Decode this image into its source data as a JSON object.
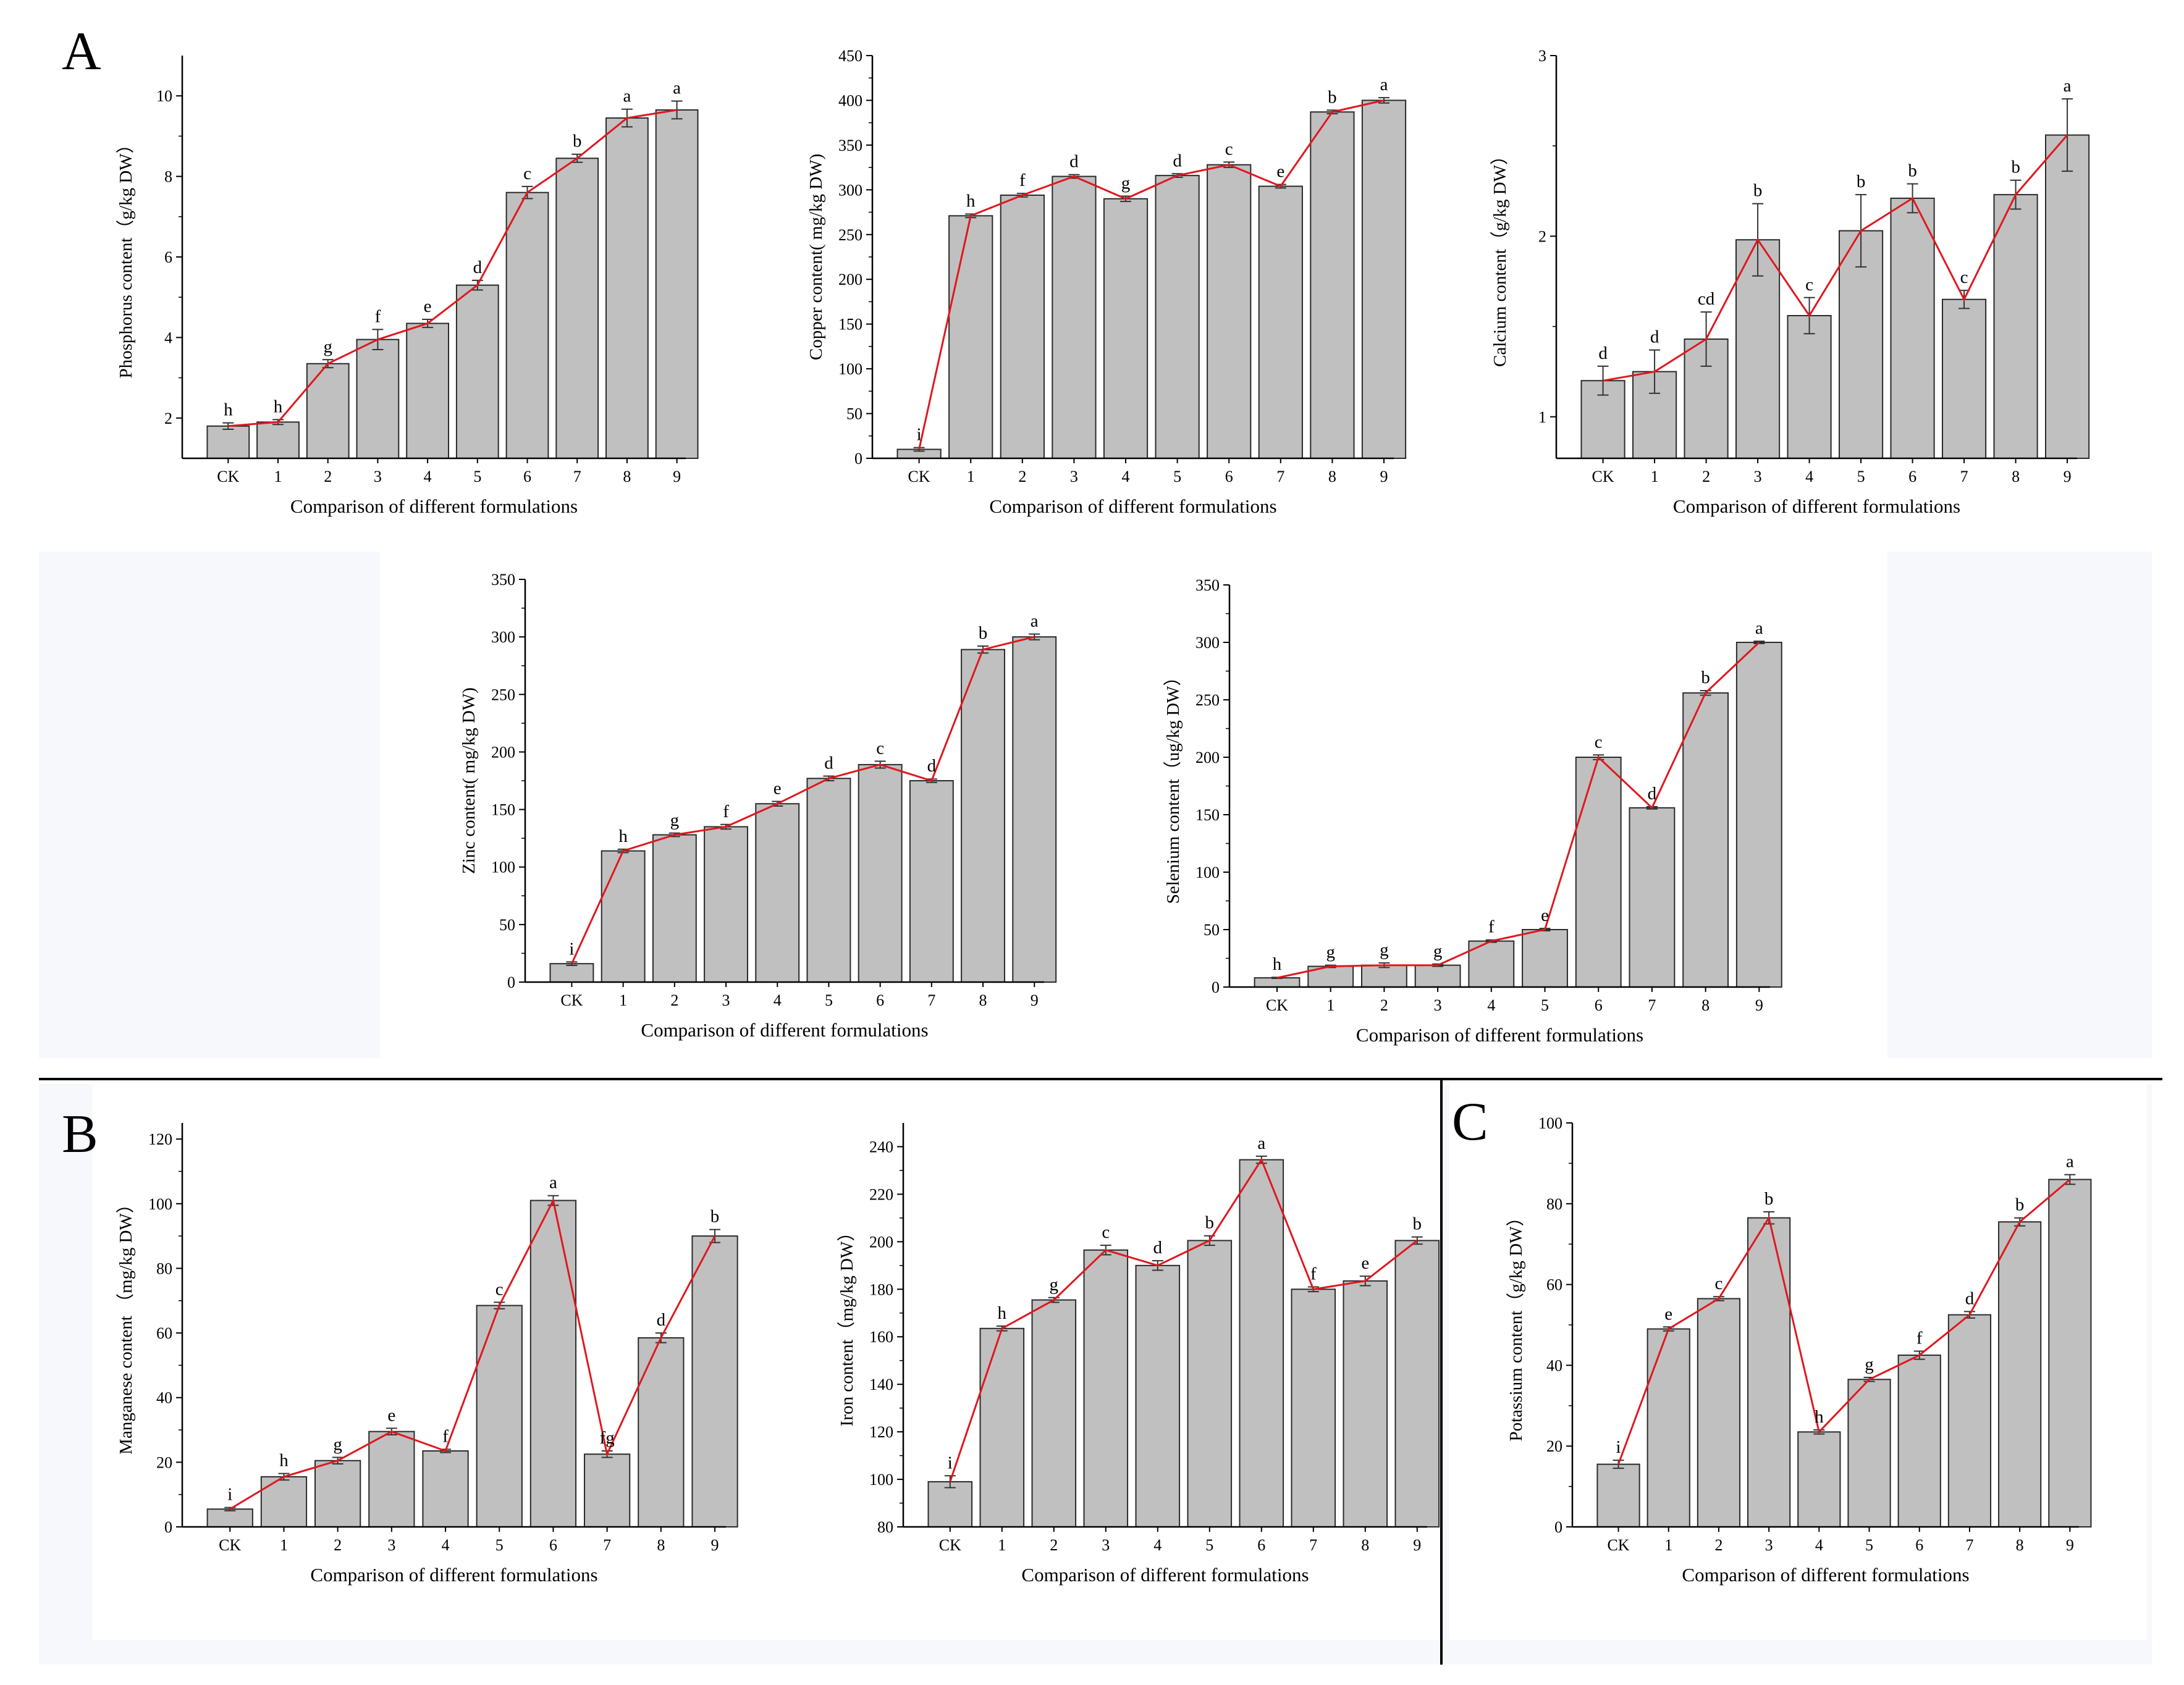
{
  "panel_labels": {
    "A": "A",
    "B": "B",
    "C": "C"
  },
  "colors": {
    "bar_fill": "#c0c0c0",
    "bar_stroke": "#2a2a2a",
    "line": "#e0171e",
    "axis": "#000000",
    "error": "#333333",
    "bg_shade": "#f7f8fc"
  },
  "chart_data": [
    {
      "type": "bar",
      "id": "phosphorus",
      "categories": [
        "CK",
        "1",
        "2",
        "3",
        "4",
        "5",
        "6",
        "7",
        "8",
        "9"
      ],
      "values": [
        1.8,
        1.9,
        3.35,
        3.95,
        4.35,
        5.3,
        7.6,
        8.45,
        9.45,
        9.65
      ],
      "errors": [
        0.08,
        0.06,
        0.1,
        0.25,
        0.1,
        0.12,
        0.15,
        0.1,
        0.22,
        0.22
      ],
      "labels": [
        "h",
        "h",
        "g",
        "f",
        "e",
        "d",
        "c",
        "b",
        "a",
        "a"
      ],
      "ylim": [
        1,
        11
      ],
      "yticks": [
        2,
        4,
        6,
        8,
        10
      ],
      "xlabel": "Comparison of different formulations",
      "ylabel": "Phosphorus content（g/kg DW）",
      "title": ""
    },
    {
      "type": "bar",
      "id": "copper",
      "categories": [
        "CK",
        "1",
        "2",
        "3",
        "4",
        "5",
        "6",
        "7",
        "8",
        "9"
      ],
      "values": [
        10,
        271,
        294,
        315,
        290,
        316,
        328,
        304,
        387,
        400
      ],
      "errors": [
        2,
        2,
        2,
        2,
        3,
        2,
        3,
        2,
        2,
        3
      ],
      "labels": [
        "i",
        "h",
        "f",
        "d",
        "g",
        "d",
        "c",
        "e",
        "b",
        "a"
      ],
      "ylim": [
        0,
        450
      ],
      "yticks": [
        0,
        50,
        100,
        150,
        200,
        250,
        300,
        350,
        400,
        450
      ],
      "xlabel": "Comparison of different formulations",
      "ylabel": "Copper content( mg/kg DW)",
      "title": ""
    },
    {
      "type": "bar",
      "id": "calcium",
      "categories": [
        "CK",
        "1",
        "2",
        "3",
        "4",
        "5",
        "6",
        "7",
        "8",
        "9"
      ],
      "values": [
        1.2,
        1.25,
        1.43,
        1.98,
        1.56,
        2.03,
        2.21,
        1.65,
        2.23,
        2.56
      ],
      "errors": [
        0.08,
        0.12,
        0.15,
        0.2,
        0.1,
        0.2,
        0.08,
        0.05,
        0.08,
        0.2
      ],
      "labels": [
        "d",
        "d",
        "cd",
        "b",
        "c",
        "b",
        "b",
        "c",
        "b",
        "a"
      ],
      "ylim": [
        0.77,
        3
      ],
      "yticks": [
        1,
        2,
        3
      ],
      "xlabel": "Comparison of different formulations",
      "ylabel": "Calcium content（g/kg DW）",
      "title": ""
    },
    {
      "type": "bar",
      "id": "zinc",
      "categories": [
        "CK",
        "1",
        "2",
        "3",
        "4",
        "5",
        "6",
        "7",
        "8",
        "9"
      ],
      "values": [
        16,
        114,
        128,
        135,
        155,
        177,
        189,
        175,
        289,
        300
      ],
      "errors": [
        1.5,
        1.5,
        1.5,
        2,
        2,
        2,
        3,
        1.5,
        3,
        2.5
      ],
      "labels": [
        "i",
        "h",
        "g",
        "f",
        "e",
        "d",
        "c",
        "d",
        "b",
        "a"
      ],
      "ylim": [
        0,
        350
      ],
      "yticks": [
        0,
        50,
        100,
        150,
        200,
        250,
        300,
        350
      ],
      "xlabel": "Comparison of different formulations",
      "ylabel": "Zinc content( mg/kg DW)",
      "title": ""
    },
    {
      "type": "bar",
      "id": "selenium",
      "categories": [
        "CK",
        "1",
        "2",
        "3",
        "4",
        "5",
        "6",
        "7",
        "8",
        "9"
      ],
      "values": [
        8,
        18,
        19,
        19,
        40,
        50,
        200,
        156,
        256,
        300
      ],
      "errors": [
        0.5,
        1,
        2,
        1,
        1,
        1,
        2,
        1,
        2,
        1
      ],
      "labels": [
        "h",
        "g",
        "g",
        "g",
        "f",
        "e",
        "c",
        "d",
        "b",
        "a"
      ],
      "ylim": [
        0,
        350
      ],
      "yticks": [
        0,
        50,
        100,
        150,
        200,
        250,
        300,
        350
      ],
      "xlabel": "Comparison of different formulations",
      "ylabel": "Selenium content（ug/kg DW）",
      "title": ""
    },
    {
      "type": "bar",
      "id": "manganese",
      "categories": [
        "CK",
        "1",
        "2",
        "3",
        "4",
        "5",
        "6",
        "7",
        "8",
        "9"
      ],
      "values": [
        5.5,
        15.5,
        20.5,
        29.5,
        23.5,
        68.5,
        101,
        22.5,
        58.5,
        90
      ],
      "errors": [
        0.5,
        1,
        1,
        1,
        0.5,
        1,
        1.5,
        1,
        1.5,
        2
      ],
      "labels": [
        "i",
        "h",
        "g",
        "e",
        "f",
        "c",
        "a",
        "fg",
        "d",
        "b"
      ],
      "ylim": [
        0,
        125
      ],
      "yticks": [
        0,
        20,
        40,
        60,
        80,
        100,
        120
      ],
      "xlabel": "Comparison of different formulations",
      "ylabel": "Manganese content （mg/kg DW）",
      "title": ""
    },
    {
      "type": "bar",
      "id": "iron",
      "categories": [
        "CK",
        "1",
        "2",
        "3",
        "4",
        "5",
        "6",
        "7",
        "8",
        "9"
      ],
      "values": [
        99,
        163.5,
        175.5,
        196.5,
        190,
        200.5,
        234.5,
        180,
        183.5,
        200.5
      ],
      "errors": [
        2.5,
        1,
        1,
        2,
        2,
        2,
        1.5,
        1,
        2,
        1.5
      ],
      "labels": [
        "i",
        "h",
        "g",
        "c",
        "d",
        "b",
        "a",
        "f",
        "e",
        "b"
      ],
      "ylim": [
        80,
        250
      ],
      "yticks": [
        80,
        100,
        120,
        140,
        160,
        180,
        200,
        220,
        240
      ],
      "xlabel": "Comparison of different formulations",
      "ylabel": "Iron content（mg/kg DW）",
      "title": ""
    },
    {
      "type": "bar",
      "id": "potassium",
      "categories": [
        "CK",
        "1",
        "2",
        "3",
        "4",
        "5",
        "6",
        "7",
        "8",
        "9"
      ],
      "values": [
        15.5,
        49,
        56.5,
        76.5,
        23.5,
        36.5,
        42.5,
        52.5,
        75.5,
        86
      ],
      "errors": [
        1,
        0.5,
        0.5,
        1.5,
        0.5,
        0.5,
        1,
        0.8,
        1,
        1.2
      ],
      "labels": [
        "i",
        "e",
        "c",
        "b",
        "h",
        "g",
        "f",
        "d",
        "b",
        "a"
      ],
      "ylim": [
        0,
        100
      ],
      "yticks": [
        0,
        20,
        40,
        60,
        80,
        100
      ],
      "xlabel": "Comparison of different formulations",
      "ylabel": "Potassium content（g/kg DW）",
      "title": ""
    }
  ]
}
